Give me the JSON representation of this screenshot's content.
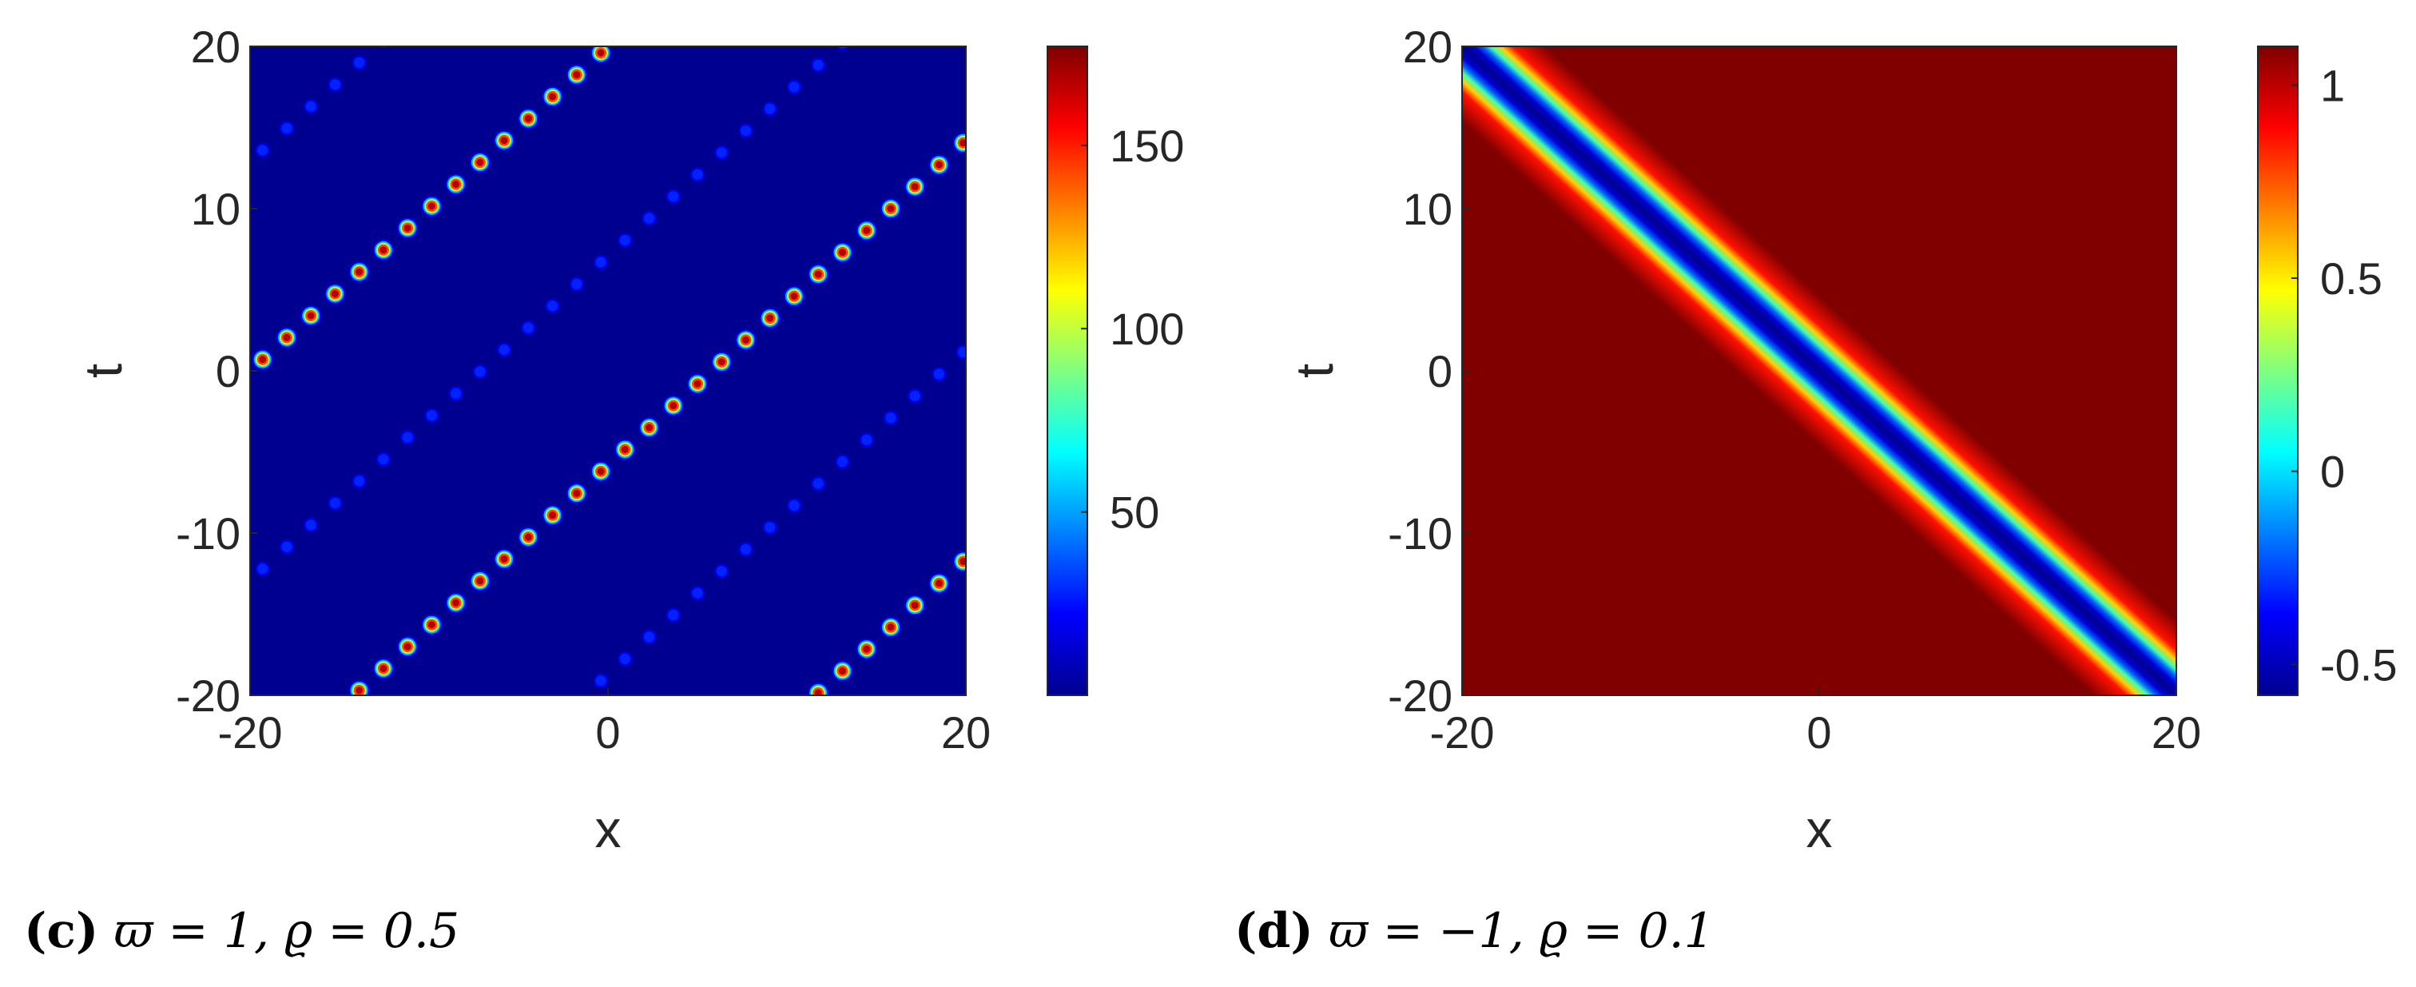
{
  "chart_data": [
    {
      "type": "heatmap",
      "panel_label": "(c)",
      "caption_math": "ϖ = 1,  ϱ = 0.5",
      "xlabel": "x",
      "ylabel": "t",
      "xlim": [
        -20,
        20
      ],
      "ylim": [
        -20,
        20
      ],
      "x_ticks": [
        "-20",
        "0",
        "20"
      ],
      "y_ticks": [
        "20",
        "10",
        "0",
        "-10",
        "-20"
      ],
      "colormap": "jet",
      "color_range": [
        0,
        177
      ],
      "colorbar_ticks": [
        "150",
        "100",
        "50"
      ],
      "colorbar_tick_values": [
        150,
        100,
        50
      ],
      "structure": {
        "line_slope_dt_dx": 1,
        "line_period_t": 25.8,
        "strong_line_intercepts_t": [
          20,
          -5.8
        ],
        "weak_line_intercepts_t": [
          7.1,
          -18.7
        ],
        "peak_spacing_x": 1.35,
        "strong_peak_value": 177,
        "weak_peak_value": 28
      },
      "grid": false
    },
    {
      "type": "heatmap",
      "panel_label": "(d)",
      "caption_math": "ϖ = −1,  ϱ = 0.1",
      "xlabel": "x",
      "ylabel": "t",
      "xlim": [
        -20,
        20
      ],
      "ylim": [
        -20,
        20
      ],
      "x_ticks": [
        "-20",
        "0",
        "20"
      ],
      "y_ticks": [
        "20",
        "10",
        "0",
        "-10",
        "-20"
      ],
      "colormap": "jet",
      "color_range": [
        -0.58,
        1.1
      ],
      "colorbar_ticks": [
        "1",
        "0.5",
        "0",
        "-0.5"
      ],
      "colorbar_tick_values": [
        1,
        0.5,
        0,
        -0.5
      ],
      "structure": {
        "line_slope_dt_dx": -1,
        "trough_line": "t = -x",
        "background_value": 1.1,
        "trough_value": -0.58
      },
      "grid": false
    }
  ]
}
